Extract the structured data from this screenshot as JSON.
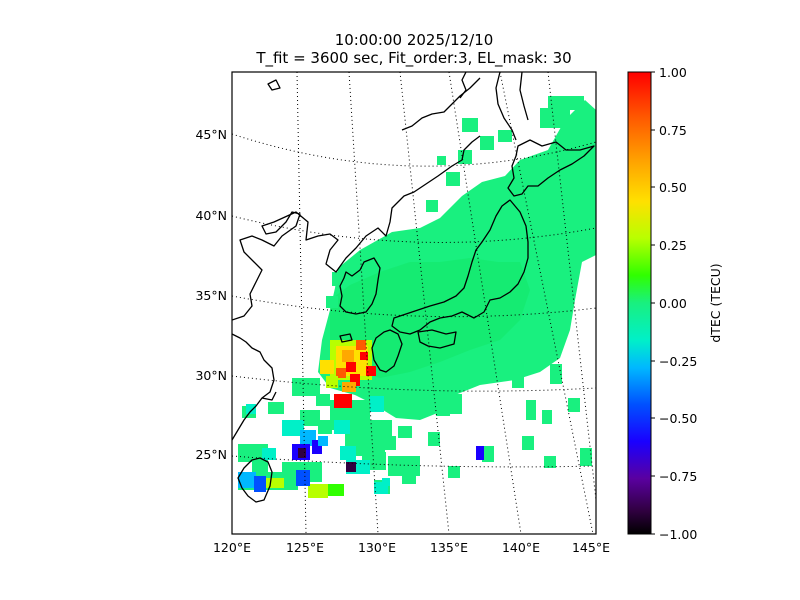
{
  "title": {
    "line1": "10:00:00 2025/12/10",
    "line2": "T_fit = 3600 sec, Fit_order:3, EL_mask: 30"
  },
  "map": {
    "lat_labels": [
      "45°N",
      "40°N",
      "35°N",
      "30°N",
      "25°N"
    ],
    "lon_labels": [
      "120°E",
      "125°E",
      "130°E",
      "135°E",
      "140°E",
      "145°E"
    ],
    "lon_range": [
      120,
      145
    ],
    "lat_range": [
      20,
      49
    ],
    "gridlines": "dotted"
  },
  "colorbar": {
    "label": "dTEC (TECU)",
    "ticks": [
      "1.00",
      "0.75",
      "0.50",
      "0.25",
      "0.00",
      "−0.25",
      "−0.50",
      "−0.75",
      "−1.00"
    ],
    "range": [
      -1.0,
      1.0
    ],
    "colormap": "nipy_spectral-like"
  },
  "colors": {
    "background": "#ffffff",
    "coastline": "#000000",
    "dominant_tec": "#19f07f",
    "positive_anomaly": "#ff1a00",
    "negative_anomaly": "#1a00ff"
  }
}
